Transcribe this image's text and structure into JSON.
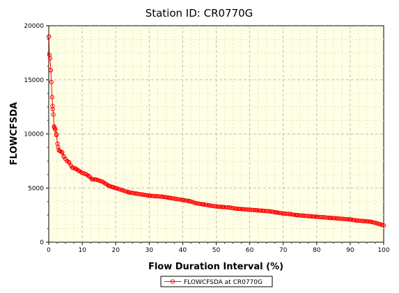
{
  "chart_data": {
    "type": "line",
    "title": "Station ID: CR0770G",
    "xlabel": "Flow Duration Interval (%)",
    "ylabel": "FLOWCFSDA",
    "xlim": [
      0,
      100
    ],
    "ylim": [
      0,
      20000
    ],
    "x_ticks": [
      0,
      10,
      20,
      30,
      40,
      50,
      60,
      70,
      80,
      90,
      100
    ],
    "y_ticks": [
      0,
      5000,
      10000,
      15000,
      20000
    ],
    "grid": true,
    "legend_position": "bottom",
    "colors": {
      "plot_background": "#ffffe6",
      "series": "#ff0000",
      "grid": "#bdbdbd"
    },
    "series": [
      {
        "name": "FLOWCFSDA at CR0770G",
        "marker": "circle",
        "x": [
          0.05,
          0.2,
          0.4,
          0.6,
          0.8,
          1.0,
          1.2,
          1.4,
          1.6,
          1.8,
          2.0,
          2.3,
          2.6,
          3.0,
          3.5,
          4.0,
          4.5,
          5.0,
          5.5,
          6.0,
          7.0,
          8.0,
          9.0,
          10.0,
          11.0,
          12.0,
          13.0,
          14.0,
          15.0,
          16.0,
          17.0,
          18.0,
          19.0,
          20.0,
          22.0,
          24.0,
          26.0,
          28.0,
          30.0,
          32.0,
          34.0,
          36.0,
          38.0,
          40.0,
          42.0,
          44.0,
          46.0,
          48.0,
          50.0,
          52.0,
          54.0,
          56.0,
          58.0,
          60.0,
          62.0,
          64.0,
          66.0,
          68.0,
          70.0,
          72.0,
          74.0,
          76.0,
          78.0,
          80.0,
          82.0,
          84.0,
          86.0,
          88.0,
          90.0,
          92.0,
          94.0,
          96.0,
          98.0,
          99.0,
          100.0
        ],
        "y": [
          19000,
          17300,
          17000,
          15900,
          14800,
          13400,
          12300,
          11800,
          10700,
          10500,
          10400,
          9900,
          9100,
          8500,
          8400,
          8300,
          7900,
          7700,
          7500,
          7400,
          6900,
          6800,
          6600,
          6400,
          6300,
          6100,
          5800,
          5800,
          5700,
          5600,
          5400,
          5200,
          5100,
          5000,
          4800,
          4600,
          4500,
          4400,
          4300,
          4250,
          4200,
          4100,
          4000,
          3900,
          3800,
          3600,
          3500,
          3400,
          3300,
          3250,
          3200,
          3100,
          3050,
          3000,
          2950,
          2900,
          2850,
          2750,
          2650,
          2600,
          2500,
          2450,
          2400,
          2350,
          2300,
          2250,
          2200,
          2150,
          2100,
          2000,
          1950,
          1900,
          1750,
          1650,
          1550
        ]
      }
    ]
  }
}
